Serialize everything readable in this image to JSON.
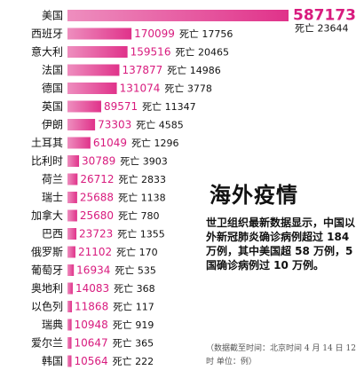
{
  "chart_data": {
    "type": "bar",
    "orientation": "horizontal",
    "categories": [
      "美国",
      "西班牙",
      "意大利",
      "法国",
      "德国",
      "英国",
      "伊朗",
      "土耳其",
      "比利时",
      "荷兰",
      "瑞士",
      "加拿大",
      "巴西",
      "俄罗斯",
      "葡萄牙",
      "奥地利",
      "以色列",
      "瑞典",
      "爱尔兰",
      "韩国"
    ],
    "values": [
      587173,
      170099,
      159516,
      137877,
      131074,
      89571,
      73303,
      61049,
      30789,
      26712,
      25688,
      25680,
      23723,
      21102,
      16934,
      14083,
      11868,
      10948,
      10647,
      10564
    ],
    "deaths": [
      23644,
      17756,
      20465,
      14986,
      3778,
      11347,
      4585,
      1296,
      3903,
      2833,
      1138,
      780,
      1355,
      170,
      535,
      368,
      117,
      919,
      365,
      222
    ],
    "deaths_label": "死亡",
    "bar_color": "#e0328a",
    "title": "海外疫情",
    "summary": "世卫组织最新数据显示，中国以外新冠肺炎确诊病例超过 184 万例，其中美国超 58 万例，5 国确诊病例过 10 万例。",
    "note": "（数据截至时间：北京时间 4 月 14 日 12 时  单位：例）"
  }
}
